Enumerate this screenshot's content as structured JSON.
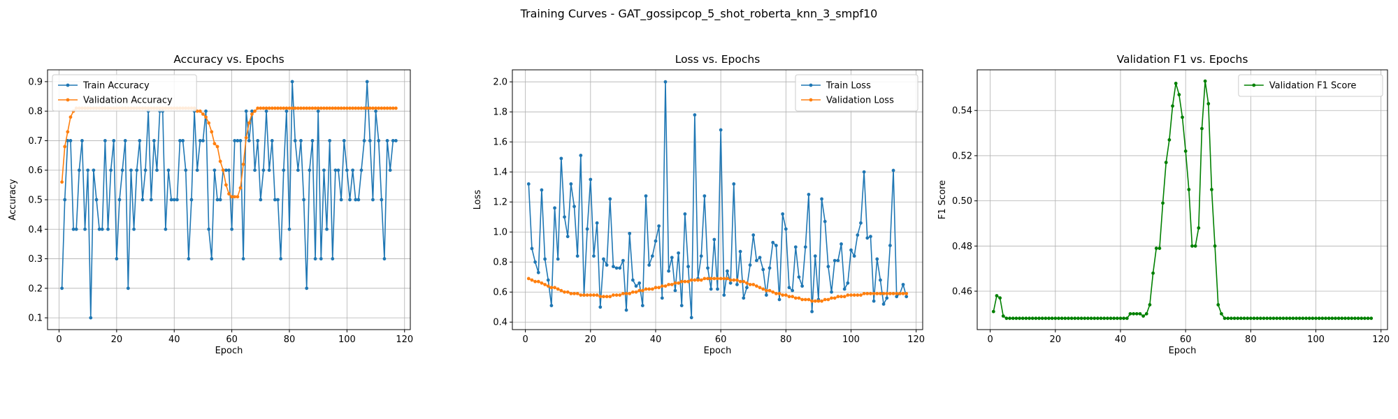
{
  "figure_title": "Training Curves - GAT_gossipcop_5_shot_roberta_knn_3_smpf10",
  "colors": {
    "blue": "#1f77b4",
    "orange": "#ff7f0e",
    "green": "#008000",
    "grid": "#b0b0b0"
  },
  "chart_data": [
    {
      "type": "line",
      "title": "Accuracy vs. Epochs",
      "xlabel": "Epoch",
      "ylabel": "Accuracy",
      "xlim": [
        -4,
        122
      ],
      "ylim": [
        0.06,
        0.94
      ],
      "xticks": [
        0,
        20,
        40,
        60,
        80,
        100,
        120
      ],
      "yticks": [
        0.1,
        0.2,
        0.3,
        0.4,
        0.5,
        0.6,
        0.7,
        0.8,
        0.9
      ],
      "ytick_decimals": 1,
      "grid": true,
      "legend": "top-left",
      "x": [
        1,
        2,
        3,
        4,
        5,
        6,
        7,
        8,
        9,
        10,
        11,
        12,
        13,
        14,
        15,
        16,
        17,
        18,
        19,
        20,
        21,
        22,
        23,
        24,
        25,
        26,
        27,
        28,
        29,
        30,
        31,
        32,
        33,
        34,
        35,
        36,
        37,
        38,
        39,
        40,
        41,
        42,
        43,
        44,
        45,
        46,
        47,
        48,
        49,
        50,
        51,
        52,
        53,
        54,
        55,
        56,
        57,
        58,
        59,
        60,
        61,
        62,
        63,
        64,
        65,
        66,
        67,
        68,
        69,
        70,
        71,
        72,
        73,
        74,
        75,
        76,
        77,
        78,
        79,
        80,
        81,
        82,
        83,
        84,
        85,
        86,
        87,
        88,
        89,
        90,
        91,
        92,
        93,
        94,
        95,
        96,
        97,
        98,
        99,
        100,
        101,
        102,
        103,
        104,
        105,
        106,
        107,
        108,
        109,
        110,
        111,
        112,
        113,
        114,
        115,
        116,
        117
      ],
      "series": [
        {
          "name": "Train Accuracy",
          "color": "#1f77b4",
          "values": [
            0.2,
            0.5,
            0.7,
            0.7,
            0.4,
            0.4,
            0.6,
            0.7,
            0.4,
            0.6,
            0.1,
            0.6,
            0.5,
            0.4,
            0.4,
            0.7,
            0.4,
            0.6,
            0.7,
            0.3,
            0.5,
            0.6,
            0.7,
            0.2,
            0.6,
            0.4,
            0.6,
            0.7,
            0.5,
            0.6,
            0.8,
            0.5,
            0.7,
            0.6,
            0.8,
            0.8,
            0.4,
            0.6,
            0.5,
            0.5,
            0.5,
            0.7,
            0.7,
            0.6,
            0.3,
            0.5,
            0.8,
            0.6,
            0.7,
            0.7,
            0.8,
            0.4,
            0.3,
            0.6,
            0.5,
            0.5,
            0.6,
            0.6,
            0.6,
            0.4,
            0.7,
            0.7,
            0.7,
            0.3,
            0.8,
            0.7,
            0.8,
            0.6,
            0.7,
            0.5,
            0.6,
            0.8,
            0.6,
            0.7,
            0.5,
            0.5,
            0.3,
            0.6,
            0.8,
            0.4,
            0.9,
            0.7,
            0.6,
            0.7,
            0.5,
            0.2,
            0.6,
            0.7,
            0.3,
            0.8,
            0.3,
            0.6,
            0.4,
            0.7,
            0.3,
            0.6,
            0.6,
            0.5,
            0.7,
            0.6,
            0.5,
            0.6,
            0.5,
            0.5,
            0.6,
            0.7,
            0.9,
            0.7,
            0.5,
            0.8,
            0.7,
            0.5,
            0.3,
            0.7,
            0.6,
            0.7,
            0.7
          ]
        },
        {
          "name": "Validation Accuracy",
          "color": "#ff7f0e",
          "values": [
            0.56,
            0.68,
            0.73,
            0.78,
            0.8,
            0.81,
            0.81,
            0.81,
            0.81,
            0.81,
            0.81,
            0.81,
            0.81,
            0.81,
            0.81,
            0.81,
            0.81,
            0.81,
            0.81,
            0.81,
            0.81,
            0.81,
            0.81,
            0.81,
            0.81,
            0.81,
            0.81,
            0.81,
            0.81,
            0.81,
            0.81,
            0.81,
            0.81,
            0.81,
            0.81,
            0.81,
            0.81,
            0.81,
            0.81,
            0.81,
            0.81,
            0.81,
            0.81,
            0.81,
            0.81,
            0.81,
            0.81,
            0.8,
            0.8,
            0.79,
            0.78,
            0.76,
            0.73,
            0.69,
            0.68,
            0.63,
            0.6,
            0.55,
            0.52,
            0.51,
            0.51,
            0.51,
            0.54,
            0.62,
            0.71,
            0.76,
            0.79,
            0.8,
            0.81,
            0.81,
            0.81,
            0.81,
            0.81,
            0.81,
            0.81,
            0.81,
            0.81,
            0.81,
            0.81,
            0.81,
            0.81,
            0.81,
            0.81,
            0.81,
            0.81,
            0.81,
            0.81,
            0.81,
            0.81,
            0.81,
            0.81,
            0.81,
            0.81,
            0.81,
            0.81,
            0.81,
            0.81,
            0.81,
            0.81,
            0.81,
            0.81,
            0.81,
            0.81,
            0.81,
            0.81,
            0.81,
            0.81,
            0.81,
            0.81,
            0.81,
            0.81,
            0.81,
            0.81,
            0.81,
            0.81,
            0.81,
            0.81
          ]
        }
      ]
    },
    {
      "type": "line",
      "title": "Loss vs. Epochs",
      "xlabel": "Epoch",
      "ylabel": "Loss",
      "xlim": [
        -4,
        122
      ],
      "ylim": [
        0.35,
        2.08
      ],
      "xticks": [
        0,
        20,
        40,
        60,
        80,
        100,
        120
      ],
      "yticks": [
        0.4,
        0.6,
        0.8,
        1.0,
        1.2,
        1.4,
        1.6,
        1.8,
        2.0
      ],
      "ytick_decimals": 1,
      "grid": true,
      "legend": "top-right",
      "x": [
        1,
        2,
        3,
        4,
        5,
        6,
        7,
        8,
        9,
        10,
        11,
        12,
        13,
        14,
        15,
        16,
        17,
        18,
        19,
        20,
        21,
        22,
        23,
        24,
        25,
        26,
        27,
        28,
        29,
        30,
        31,
        32,
        33,
        34,
        35,
        36,
        37,
        38,
        39,
        40,
        41,
        42,
        43,
        44,
        45,
        46,
        47,
        48,
        49,
        50,
        51,
        52,
        53,
        54,
        55,
        56,
        57,
        58,
        59,
        60,
        61,
        62,
        63,
        64,
        65,
        66,
        67,
        68,
        69,
        70,
        71,
        72,
        73,
        74,
        75,
        76,
        77,
        78,
        79,
        80,
        81,
        82,
        83,
        84,
        85,
        86,
        87,
        88,
        89,
        90,
        91,
        92,
        93,
        94,
        95,
        96,
        97,
        98,
        99,
        100,
        101,
        102,
        103,
        104,
        105,
        106,
        107,
        108,
        109,
        110,
        111,
        112,
        113,
        114,
        115,
        116,
        117
      ],
      "series": [
        {
          "name": "Train Loss",
          "color": "#1f77b4",
          "values": [
            1.32,
            0.89,
            0.8,
            0.73,
            1.28,
            0.82,
            0.68,
            0.51,
            1.16,
            0.82,
            1.49,
            1.1,
            0.97,
            1.32,
            1.17,
            0.84,
            1.51,
            0.58,
            1.02,
            1.35,
            0.84,
            1.06,
            0.5,
            0.82,
            0.78,
            1.22,
            0.77,
            0.76,
            0.76,
            0.81,
            0.48,
            0.99,
            0.68,
            0.64,
            0.66,
            0.51,
            1.24,
            0.78,
            0.84,
            0.94,
            1.04,
            0.56,
            2.0,
            0.74,
            0.83,
            0.61,
            0.86,
            0.51,
            1.12,
            0.77,
            0.43,
            1.78,
            0.69,
            0.84,
            1.24,
            0.76,
            0.62,
            0.95,
            0.62,
            1.68,
            0.58,
            0.74,
            0.66,
            1.32,
            0.65,
            0.87,
            0.56,
            0.63,
            0.78,
            0.98,
            0.81,
            0.83,
            0.75,
            0.58,
            0.76,
            0.93,
            0.91,
            0.55,
            1.12,
            1.02,
            0.63,
            0.61,
            0.9,
            0.7,
            0.64,
            0.9,
            1.25,
            0.47,
            0.84,
            0.55,
            1.22,
            1.07,
            0.77,
            0.6,
            0.81,
            0.81,
            0.92,
            0.62,
            0.66,
            0.88,
            0.84,
            0.98,
            1.06,
            1.4,
            0.96,
            0.97,
            0.54,
            0.82,
            0.68,
            0.52,
            0.56,
            0.91,
            1.41,
            0.57,
            0.59,
            0.65,
            0.57
          ]
        },
        {
          "name": "Validation Loss",
          "color": "#ff7f0e",
          "values": [
            0.69,
            0.68,
            0.67,
            0.67,
            0.66,
            0.65,
            0.64,
            0.63,
            0.63,
            0.62,
            0.61,
            0.6,
            0.6,
            0.59,
            0.59,
            0.59,
            0.58,
            0.58,
            0.58,
            0.58,
            0.58,
            0.58,
            0.57,
            0.57,
            0.57,
            0.57,
            0.58,
            0.58,
            0.58,
            0.59,
            0.59,
            0.59,
            0.6,
            0.6,
            0.61,
            0.61,
            0.62,
            0.62,
            0.62,
            0.63,
            0.63,
            0.64,
            0.64,
            0.65,
            0.65,
            0.66,
            0.66,
            0.67,
            0.67,
            0.67,
            0.68,
            0.68,
            0.68,
            0.68,
            0.69,
            0.69,
            0.69,
            0.69,
            0.69,
            0.69,
            0.69,
            0.69,
            0.68,
            0.68,
            0.68,
            0.67,
            0.67,
            0.66,
            0.65,
            0.65,
            0.64,
            0.63,
            0.62,
            0.61,
            0.61,
            0.6,
            0.59,
            0.59,
            0.58,
            0.58,
            0.57,
            0.57,
            0.56,
            0.56,
            0.55,
            0.55,
            0.55,
            0.54,
            0.54,
            0.54,
            0.54,
            0.55,
            0.55,
            0.56,
            0.56,
            0.57,
            0.57,
            0.57,
            0.58,
            0.58,
            0.58,
            0.58,
            0.58,
            0.59,
            0.59,
            0.59,
            0.59,
            0.59,
            0.59,
            0.59,
            0.59,
            0.59,
            0.59,
            0.59,
            0.59,
            0.59,
            0.59
          ]
        }
      ]
    },
    {
      "type": "line",
      "title": "Validation F1 vs. Epochs",
      "xlabel": "Epoch",
      "ylabel": "F1 Score",
      "xlim": [
        -4,
        122
      ],
      "ylim": [
        0.443,
        0.558
      ],
      "xticks": [
        0,
        20,
        40,
        60,
        80,
        100,
        120
      ],
      "yticks": [
        0.46,
        0.48,
        0.5,
        0.52,
        0.54
      ],
      "ytick_decimals": 2,
      "grid": true,
      "legend": "top-right",
      "x": [
        1,
        2,
        3,
        4,
        5,
        6,
        7,
        8,
        9,
        10,
        11,
        12,
        13,
        14,
        15,
        16,
        17,
        18,
        19,
        20,
        21,
        22,
        23,
        24,
        25,
        26,
        27,
        28,
        29,
        30,
        31,
        32,
        33,
        34,
        35,
        36,
        37,
        38,
        39,
        40,
        41,
        42,
        43,
        44,
        45,
        46,
        47,
        48,
        49,
        50,
        51,
        52,
        53,
        54,
        55,
        56,
        57,
        58,
        59,
        60,
        61,
        62,
        63,
        64,
        65,
        66,
        67,
        68,
        69,
        70,
        71,
        72,
        73,
        74,
        75,
        76,
        77,
        78,
        79,
        80,
        81,
        82,
        83,
        84,
        85,
        86,
        87,
        88,
        89,
        90,
        91,
        92,
        93,
        94,
        95,
        96,
        97,
        98,
        99,
        100,
        101,
        102,
        103,
        104,
        105,
        106,
        107,
        108,
        109,
        110,
        111,
        112,
        113,
        114,
        115,
        116,
        117
      ],
      "series": [
        {
          "name": "Validation F1 Score",
          "color": "#008000",
          "values": [
            0.451,
            0.458,
            0.457,
            0.449,
            0.448,
            0.448,
            0.448,
            0.448,
            0.448,
            0.448,
            0.448,
            0.448,
            0.448,
            0.448,
            0.448,
            0.448,
            0.448,
            0.448,
            0.448,
            0.448,
            0.448,
            0.448,
            0.448,
            0.448,
            0.448,
            0.448,
            0.448,
            0.448,
            0.448,
            0.448,
            0.448,
            0.448,
            0.448,
            0.448,
            0.448,
            0.448,
            0.448,
            0.448,
            0.448,
            0.448,
            0.448,
            0.448,
            0.45,
            0.45,
            0.45,
            0.45,
            0.449,
            0.45,
            0.454,
            0.468,
            0.479,
            0.479,
            0.499,
            0.517,
            0.527,
            0.542,
            0.552,
            0.547,
            0.537,
            0.522,
            0.505,
            0.48,
            0.48,
            0.488,
            0.532,
            0.553,
            0.543,
            0.505,
            0.48,
            0.454,
            0.45,
            0.448,
            0.448,
            0.448,
            0.448,
            0.448,
            0.448,
            0.448,
            0.448,
            0.448,
            0.448,
            0.448,
            0.448,
            0.448,
            0.448,
            0.448,
            0.448,
            0.448,
            0.448,
            0.448,
            0.448,
            0.448,
            0.448,
            0.448,
            0.448,
            0.448,
            0.448,
            0.448,
            0.448,
            0.448,
            0.448,
            0.448,
            0.448,
            0.448,
            0.448,
            0.448,
            0.448,
            0.448,
            0.448,
            0.448,
            0.448,
            0.448,
            0.448,
            0.448,
            0.448,
            0.448,
            0.448
          ]
        }
      ]
    }
  ]
}
